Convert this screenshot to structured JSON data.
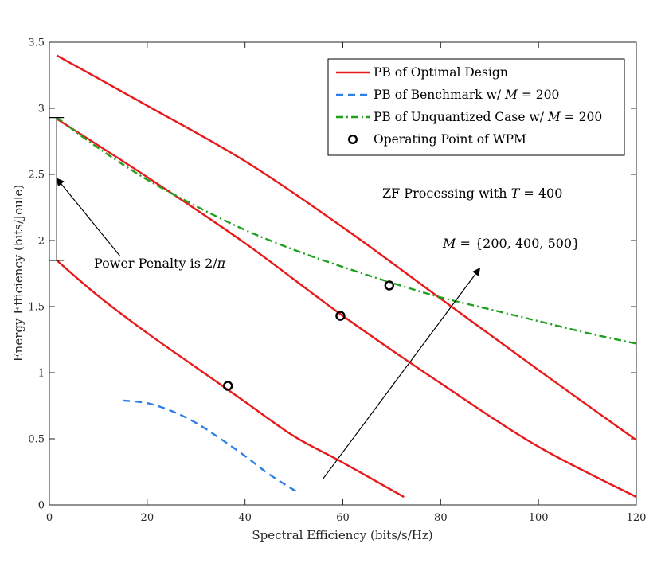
{
  "chart_data": {
    "type": "line",
    "xlabel": "Spectral Efficiency (bits/s/Hz)",
    "ylabel": "Energy Efficiency (bits/Joule)",
    "xlim": [
      0,
      120
    ],
    "ylim": [
      0,
      3.5
    ],
    "xticks": [
      0,
      20,
      40,
      60,
      80,
      100,
      120
    ],
    "yticks": [
      0,
      0.5,
      1,
      1.5,
      2,
      2.5,
      3,
      3.5
    ],
    "xtick_labels": [
      "0",
      "20",
      "40",
      "60",
      "80",
      "100",
      "120"
    ],
    "ytick_labels": [
      "0",
      "0.5",
      "1",
      "1.5",
      "2",
      "2.5",
      "3",
      "3.5"
    ],
    "grid": false,
    "legend": {
      "position": "top-right",
      "entries": [
        {
          "label": "PB of Optimal Design",
          "style": "solid",
          "color": "#e8191b"
        },
        {
          "label": "PB of Benchmark w/ M = 200",
          "style": "dashed",
          "color": "#2f7fe8"
        },
        {
          "label": "PB of Unquantized Case w/ M = 200",
          "style": "dashdot",
          "color": "#1ea01e"
        },
        {
          "label": "Operating Point of WPM",
          "style": "marker-circle",
          "color": "#000000"
        }
      ]
    },
    "series": [
      {
        "name": "PB of Optimal Design (M = 500)",
        "style": "solid",
        "color": "#e8191b",
        "x": [
          1.5,
          20,
          40,
          60,
          80,
          100,
          120
        ],
        "y": [
          3.4,
          3.02,
          2.6,
          2.1,
          1.56,
          1.02,
          0.49
        ]
      },
      {
        "name": "PB of Optimal Design (M = 400)",
        "style": "solid",
        "color": "#e8191b",
        "x": [
          1.5,
          20,
          40,
          60,
          80,
          100,
          120
        ],
        "y": [
          2.92,
          2.48,
          1.98,
          1.43,
          0.92,
          0.44,
          0.06
        ]
      },
      {
        "name": "PB of Optimal Design (M = 200)",
        "style": "solid",
        "color": "#e8191b",
        "x": [
          1.5,
          10,
          20,
          30,
          40,
          50,
          60,
          72.5
        ],
        "y": [
          1.85,
          1.58,
          1.3,
          1.04,
          0.78,
          0.52,
          0.32,
          0.06
        ]
      },
      {
        "name": "PB of Benchmark w/ M = 200",
        "style": "dashed",
        "color": "#2f7fe8",
        "x": [
          15,
          20,
          25,
          30,
          35,
          40,
          45,
          51
        ],
        "y": [
          0.79,
          0.77,
          0.71,
          0.62,
          0.5,
          0.37,
          0.23,
          0.09
        ]
      },
      {
        "name": "PB of Unquantized Case w/ M = 200",
        "style": "dashdot",
        "color": "#1ea01e",
        "x": [
          1.5,
          10,
          20,
          30,
          40,
          50,
          60,
          70,
          80,
          90,
          100,
          110,
          120
        ],
        "y": [
          2.93,
          2.7,
          2.46,
          2.26,
          2.08,
          1.93,
          1.8,
          1.68,
          1.57,
          1.48,
          1.39,
          1.3,
          1.22
        ]
      }
    ],
    "points": [
      {
        "name": "Operating Point of WPM (M = 200)",
        "x": 36.5,
        "y": 0.9
      },
      {
        "name": "Operating Point of WPM (M = 400)",
        "x": 59.5,
        "y": 1.43
      },
      {
        "name": "Operating Point of WPM (M = 500)",
        "x": 69.5,
        "y": 1.66
      }
    ],
    "annotations": [
      {
        "text": "ZF Processing with T = 400",
        "x": 68,
        "y": 2.35
      },
      {
        "text": "M = {200, 400, 500}",
        "x": 81,
        "y": 1.95
      },
      {
        "text": "Power Penalty is 2/π",
        "x": 9,
        "y": 1.8
      }
    ],
    "arrows": [
      {
        "from": [
          56,
          0.2
        ],
        "to": [
          88,
          1.79
        ],
        "label": "M = {200, 400, 500}"
      },
      {
        "from": [
          14.5,
          1.88
        ],
        "to": [
          1.5,
          2.47
        ],
        "label": "Power Penalty is 2/π"
      }
    ],
    "bracket": {
      "x": 1.5,
      "y_top": 2.93,
      "y_bottom": 1.85
    }
  },
  "labels": {
    "legend_1": "PB of Optimal Design",
    "legend_2": "PB of Benchmark w/ M = 200",
    "legend_3": "PB of Unquantized Case w/ M = 200",
    "legend_4": "Operating Point of WPM",
    "annot_zf": "ZF Processing with T = 400",
    "annot_m": "M = {200, 400, 500}",
    "annot_penalty": "Power Penalty is 2/π"
  },
  "rich_text": {
    "legend_2": [
      {
        "t": "PB of Benchmark w/ "
      },
      {
        "t": "M",
        "i": true
      },
      {
        "t": " = 200"
      }
    ],
    "legend_3": [
      {
        "t": "PB of Unquantized Case w/ "
      },
      {
        "t": "M",
        "i": true
      },
      {
        "t": " = 200"
      }
    ],
    "annot_zf": [
      {
        "t": "ZF Processing with "
      },
      {
        "t": "T",
        "i": true
      },
      {
        "t": " = 400"
      }
    ],
    "annot_m": [
      {
        "t": "M",
        "i": true
      },
      {
        "t": " = {200, 400, 500}"
      }
    ],
    "annot_penalty": [
      {
        "t": "Power Penalty is 2/"
      },
      {
        "t": "π",
        "i": true
      }
    ]
  }
}
